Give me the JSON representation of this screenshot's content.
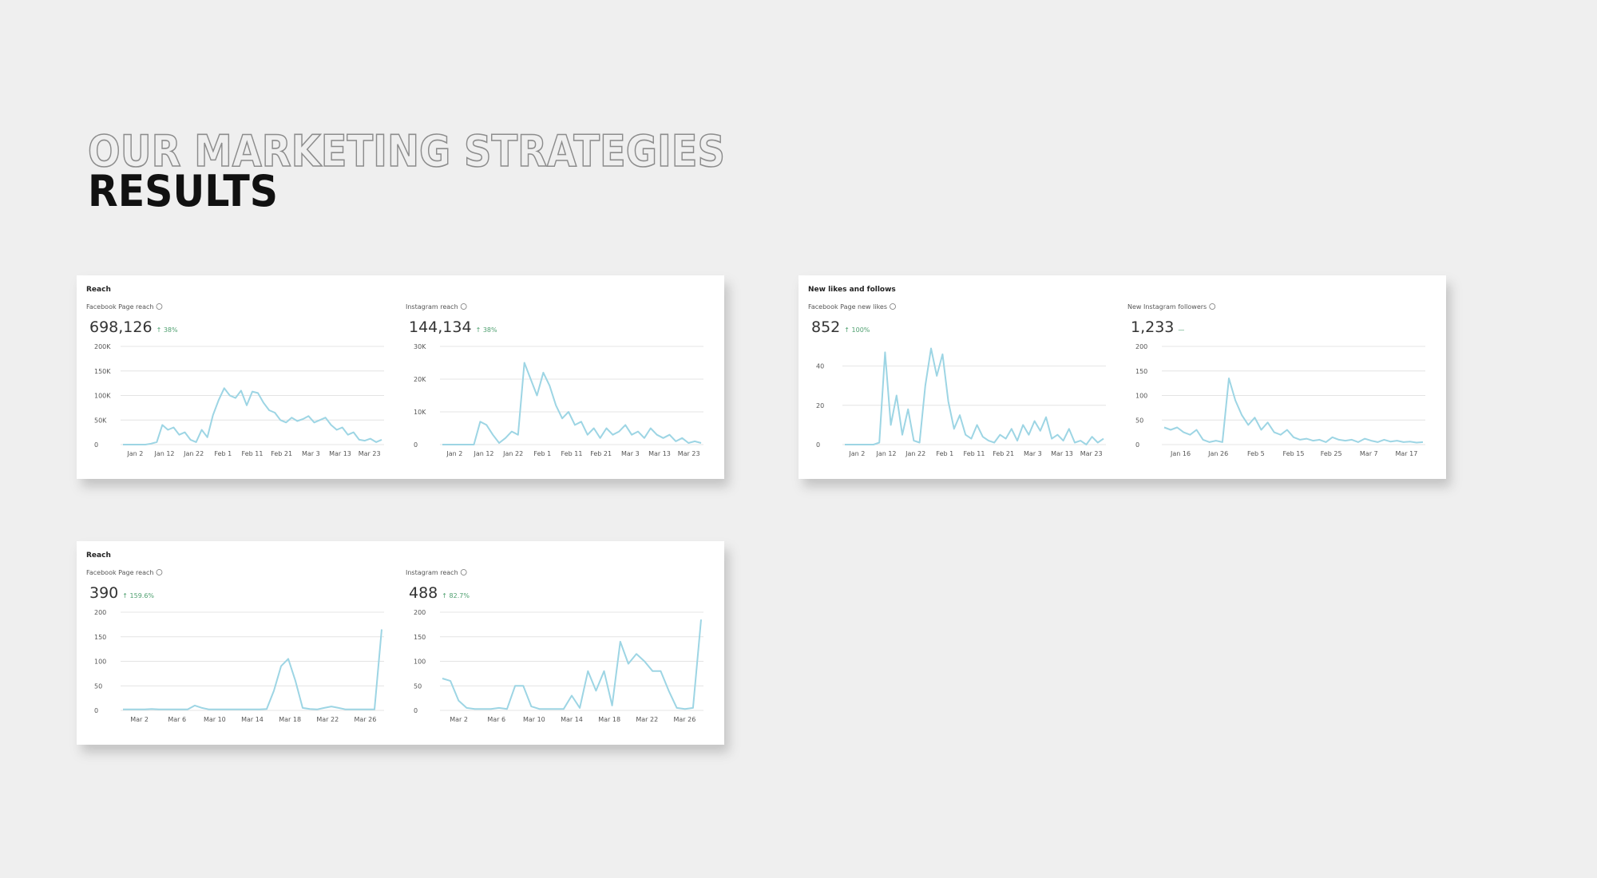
{
  "header": {
    "title": "OUR MARKETING STRATEGIES",
    "subtitle": "RESULTS"
  },
  "cards": [
    {
      "title": "Reach",
      "charts": [
        {
          "type": "line",
          "label": "Facebook Page reach",
          "total": "698,126",
          "change": "↑ 38%",
          "ylim": [
            0,
            200000
          ],
          "yticks": [
            0,
            {
              "value": 50000,
              "label": "50K"
            },
            {
              "value": 100000,
              "label": "100K"
            },
            {
              "value": 150000,
              "label": "150K"
            },
            {
              "value": 200000,
              "label": "200K"
            }
          ],
          "xtick_labels": [
            "Jan 2",
            "Jan 12",
            "Jan 22",
            "Feb 1",
            "Feb 11",
            "Feb 21",
            "Mar 3",
            "Mar 13",
            "Mar 23"
          ],
          "color": "#9dd5e4",
          "values": [
            0,
            0,
            0,
            0,
            0,
            2000,
            5000,
            40000,
            30000,
            35000,
            20000,
            25000,
            10000,
            5000,
            30000,
            15000,
            60000,
            90000,
            115000,
            100000,
            95000,
            110000,
            80000,
            108000,
            105000,
            85000,
            70000,
            65000,
            50000,
            45000,
            55000,
            48000,
            52000,
            58000,
            45000,
            50000,
            55000,
            40000,
            30000,
            35000,
            20000,
            25000,
            10000,
            8000,
            12000,
            5000,
            10000
          ]
        },
        {
          "type": "line",
          "label": "Instagram reach",
          "total": "144,134",
          "change": "↑ 38%",
          "ylim": [
            0,
            30000
          ],
          "yticks": [
            0,
            {
              "value": 10000,
              "label": "10K"
            },
            {
              "value": 20000,
              "label": "20K"
            },
            {
              "value": 30000,
              "label": "30K"
            }
          ],
          "xtick_labels": [
            "Jan 2",
            "Jan 12",
            "Jan 22",
            "Feb 1",
            "Feb 11",
            "Feb 21",
            "Mar 3",
            "Mar 13",
            "Mar 23"
          ],
          "color": "#9dd5e4",
          "values": [
            0,
            0,
            0,
            0,
            0,
            0,
            7000,
            6000,
            3000,
            500,
            2000,
            4000,
            3000,
            25000,
            20000,
            15000,
            22000,
            18000,
            12000,
            8000,
            10000,
            6000,
            7000,
            3000,
            5000,
            2000,
            5000,
            3000,
            4000,
            6000,
            3000,
            4000,
            2000,
            5000,
            3000,
            2000,
            3000,
            1000,
            2000,
            500,
            1000,
            500
          ]
        }
      ]
    },
    {
      "title": "New likes and follows",
      "charts": [
        {
          "type": "line",
          "label": "Facebook Page new likes",
          "total": "852",
          "change": "↑ 100%",
          "ylim": [
            0,
            50
          ],
          "yticks": [
            0,
            20,
            40
          ],
          "xtick_labels": [
            "Jan 2",
            "Jan 12",
            "Jan 22",
            "Feb 1",
            "Feb 11",
            "Feb 21",
            "Mar 3",
            "Mar 13",
            "Mar 23"
          ],
          "color": "#9dd5e4",
          "values": [
            0,
            0,
            0,
            0,
            0,
            0,
            1,
            47,
            10,
            25,
            5,
            18,
            2,
            1,
            30,
            49,
            35,
            46,
            22,
            8,
            15,
            5,
            3,
            10,
            4,
            2,
            1,
            5,
            3,
            8,
            2,
            10,
            5,
            12,
            7,
            14,
            3,
            5,
            2,
            8,
            1,
            2,
            0,
            4,
            1,
            3
          ]
        },
        {
          "type": "line",
          "label": "New Instagram followers",
          "total": "1,233",
          "change": "—",
          "ylim": [
            0,
            200
          ],
          "yticks": [
            0,
            50,
            100,
            150,
            200
          ],
          "xtick_labels": [
            "Jan 16",
            "Jan 26",
            "Feb 5",
            "Feb 15",
            "Feb 25",
            "Mar 7",
            "Mar 17"
          ],
          "color": "#9dd5e4",
          "values": [
            35,
            30,
            35,
            25,
            20,
            30,
            10,
            5,
            8,
            5,
            135,
            90,
            60,
            40,
            55,
            30,
            45,
            25,
            20,
            30,
            15,
            10,
            12,
            8,
            10,
            5,
            15,
            10,
            8,
            10,
            5,
            12,
            8,
            5,
            10,
            6,
            8,
            5,
            6,
            4,
            5
          ]
        }
      ]
    },
    {
      "title": "Reach",
      "charts": [
        {
          "type": "line",
          "label": "Facebook Page reach",
          "total": "390",
          "change": "↑ 159.6%",
          "ylim": [
            0,
            200
          ],
          "yticks": [
            0,
            50,
            100,
            150,
            200
          ],
          "xtick_labels": [
            "Mar 2",
            "Mar 6",
            "Mar 10",
            "Mar 14",
            "Mar 18",
            "Mar 22",
            "Mar 26"
          ],
          "color": "#9dd5e4",
          "values": [
            2,
            2,
            2,
            2,
            3,
            2,
            2,
            2,
            2,
            2,
            10,
            5,
            2,
            2,
            2,
            2,
            2,
            2,
            2,
            2,
            3,
            40,
            90,
            105,
            60,
            5,
            3,
            2,
            5,
            8,
            5,
            2,
            2,
            2,
            2,
            2,
            165
          ]
        },
        {
          "type": "line",
          "label": "Instagram reach",
          "total": "488",
          "change": "↑ 82.7%",
          "ylim": [
            0,
            200
          ],
          "yticks": [
            0,
            50,
            100,
            150,
            200
          ],
          "xtick_labels": [
            "Mar 2",
            "Mar 6",
            "Mar 10",
            "Mar 14",
            "Mar 18",
            "Mar 22",
            "Mar 26"
          ],
          "color": "#9dd5e4",
          "values": [
            65,
            60,
            20,
            5,
            3,
            3,
            3,
            5,
            3,
            50,
            50,
            8,
            3,
            3,
            3,
            3,
            30,
            5,
            80,
            40,
            80,
            10,
            140,
            95,
            115,
            100,
            80,
            80,
            40,
            5,
            3,
            5,
            185
          ]
        }
      ]
    }
  ]
}
